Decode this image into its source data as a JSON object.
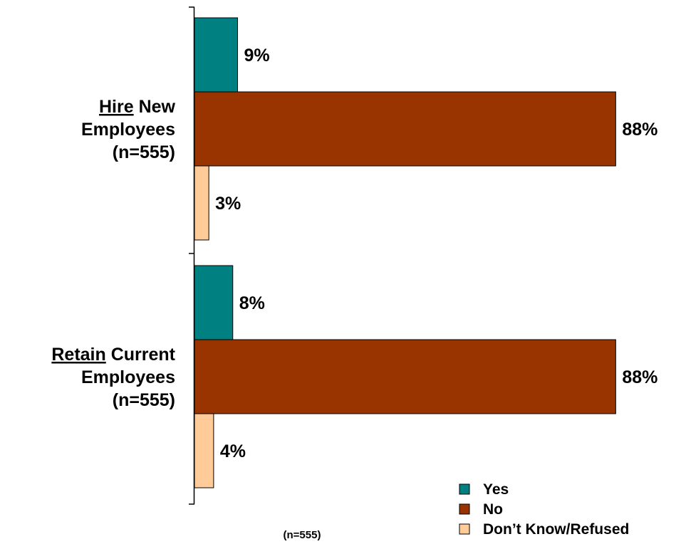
{
  "chart_data": {
    "type": "bar",
    "orientation": "horizontal",
    "categories": [
      {
        "underlined": "Hire",
        "rest": " New",
        "line2": "Employees",
        "line3": "(n=555)"
      },
      {
        "underlined": "Retain",
        "rest": " Current",
        "line2": "Employees",
        "line3": "(n=555)"
      }
    ],
    "series": [
      {
        "name": "Yes",
        "color": "#008080",
        "values": [
          9,
          8
        ]
      },
      {
        "name": "No",
        "color": "#993300",
        "values": [
          88,
          88
        ]
      },
      {
        "name": "Don’t Know/Refused",
        "color": "#FFCC99",
        "values": [
          3,
          4
        ]
      }
    ],
    "value_suffix": "%",
    "xlim": [
      0,
      100
    ],
    "grid": false,
    "legend_position": "bottom-right",
    "note": "(n=555)"
  }
}
